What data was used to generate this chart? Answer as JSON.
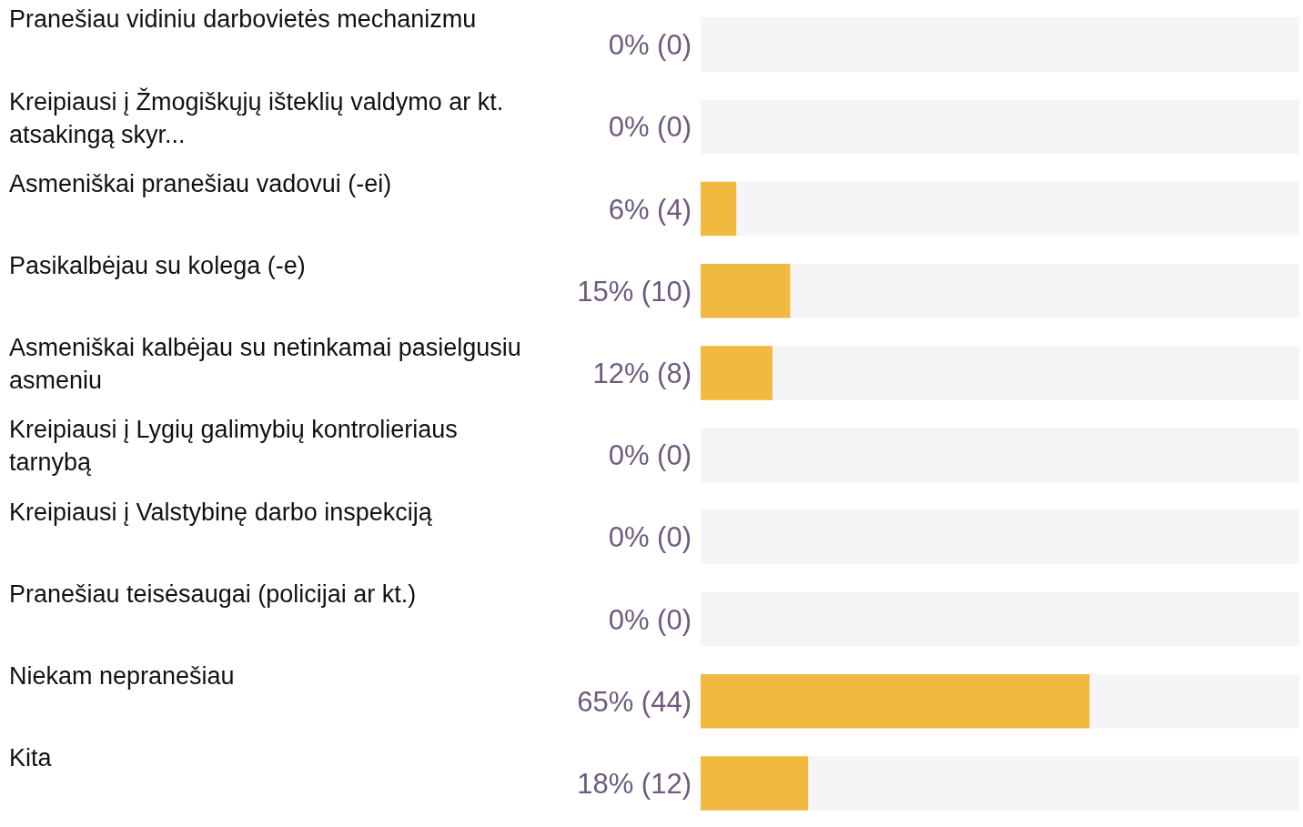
{
  "chart_data": {
    "type": "bar",
    "orientation": "horizontal",
    "stacked": true,
    "xlim": [
      0,
      100
    ],
    "categories": [
      "Pranešiau vidiniu darbovietės mechanizmu",
      "Kreipiausi į Žmogiškųjų išteklių valdymo ar kt. atsakingą skyr...",
      "Asmeniškai pranešiau vadovui (-ei)",
      "Pasikalbėjau su kolega (-e)",
      "Asmeniškai kalbėjau su netinkamai pasielgusiu asmeniu",
      "Kreipiausi į Lygių galimybių kontrolieriaus tarnybą",
      "Kreipiausi į Valstybinę darbo inspekciją",
      "Pranešiau teisėsaugai (policijai ar kt.)",
      "Niekam nepranešiau",
      "Kita"
    ],
    "series": [
      {
        "color": "#f0b93f",
        "values": [
          0,
          0,
          6,
          15,
          12,
          0,
          0,
          0,
          65,
          18
        ],
        "value_labels": [
          "0% (0)",
          "0% (0)",
          "6% (4)",
          "15% (10)",
          "12% (8)",
          "0% (0)",
          "0% (0)",
          "0% (0)",
          "65% (44)",
          "18% (12)"
        ]
      },
      {
        "color": "#f5f4f7",
        "values": [
          100,
          100,
          94,
          85,
          88,
          100,
          100,
          100,
          35,
          82
        ]
      }
    ]
  }
}
